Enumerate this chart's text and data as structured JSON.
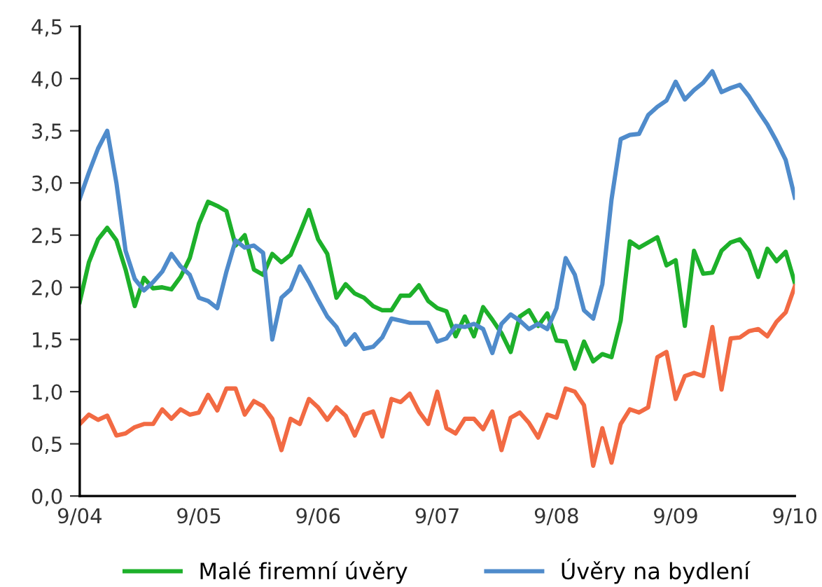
{
  "chart_data": {
    "type": "line",
    "categories": [
      "9/04",
      null,
      null,
      null,
      null,
      null,
      null,
      null,
      null,
      null,
      null,
      null,
      null,
      "9/05",
      null,
      null,
      null,
      null,
      null,
      null,
      null,
      null,
      null,
      null,
      null,
      null,
      "9/06",
      null,
      null,
      null,
      null,
      null,
      null,
      null,
      null,
      null,
      null,
      null,
      null,
      "9/07",
      null,
      null,
      null,
      null,
      null,
      null,
      null,
      null,
      null,
      null,
      null,
      null,
      "9/08",
      null,
      null,
      null,
      null,
      null,
      null,
      null,
      null,
      null,
      null,
      null,
      null,
      "9/09",
      null,
      null,
      null,
      null,
      null,
      null,
      null,
      null,
      null,
      null,
      null,
      null,
      "9/10"
    ],
    "series": [
      {
        "name": "Malé firemní úvěry",
        "color": "#1db02a",
        "values": [
          1.86,
          2.24,
          2.46,
          2.57,
          2.45,
          2.17,
          1.82,
          2.09,
          1.99,
          2.0,
          1.98,
          2.1,
          2.28,
          2.61,
          2.82,
          2.78,
          2.73,
          2.4,
          2.5,
          2.17,
          2.12,
          2.32,
          2.24,
          2.31,
          2.52,
          2.74,
          2.46,
          2.32,
          1.9,
          2.03,
          1.94,
          1.9,
          1.82,
          1.78,
          1.78,
          1.92,
          1.92,
          2.02,
          1.87,
          1.8,
          1.77,
          1.53,
          1.72,
          1.53,
          1.81,
          1.69,
          1.56,
          1.38,
          1.72,
          1.78,
          1.63,
          1.75,
          1.49,
          1.48,
          1.22,
          1.48,
          1.29,
          1.36,
          1.33,
          1.68,
          2.44,
          2.38,
          2.43,
          2.48,
          2.21,
          2.26,
          1.63,
          2.35,
          2.13,
          2.14,
          2.35,
          2.43,
          2.46,
          2.35,
          2.1,
          2.37,
          2.25,
          2.34,
          2.04
        ]
      },
      {
        "name": "Úvěry na bydlení",
        "color": "#4f8bcb",
        "values": [
          2.85,
          3.1,
          3.33,
          3.5,
          3.0,
          2.35,
          2.08,
          1.97,
          2.05,
          2.15,
          2.32,
          2.2,
          2.12,
          1.9,
          1.87,
          1.8,
          2.15,
          2.45,
          2.38,
          2.4,
          2.33,
          1.5,
          1.9,
          1.98,
          2.2,
          2.05,
          1.88,
          1.72,
          1.62,
          1.45,
          1.55,
          1.41,
          1.43,
          1.52,
          1.7,
          1.68,
          1.66,
          1.66,
          1.66,
          1.48,
          1.51,
          1.63,
          1.62,
          1.65,
          1.6,
          1.37,
          1.65,
          1.74,
          1.68,
          1.6,
          1.65,
          1.6,
          1.8,
          2.28,
          2.12,
          1.78,
          1.7,
          2.03,
          2.84,
          3.42,
          3.46,
          3.47,
          3.65,
          3.73,
          3.79,
          3.97,
          3.8,
          3.89,
          3.96,
          4.07,
          3.87,
          3.91,
          3.94,
          3.83,
          3.69,
          3.56,
          3.4,
          3.22,
          2.86
        ]
      },
      {
        "color": "#f26a43",
        "values": [
          0.69,
          0.78,
          0.73,
          0.77,
          0.58,
          0.6,
          0.66,
          0.69,
          0.69,
          0.83,
          0.74,
          0.83,
          0.78,
          0.8,
          0.97,
          0.82,
          1.03,
          1.03,
          0.78,
          0.91,
          0.86,
          0.74,
          0.44,
          0.74,
          0.69,
          0.93,
          0.85,
          0.73,
          0.85,
          0.77,
          0.58,
          0.78,
          0.81,
          0.57,
          0.93,
          0.9,
          0.98,
          0.81,
          0.69,
          1.0,
          0.65,
          0.6,
          0.74,
          0.74,
          0.64,
          0.81,
          0.44,
          0.75,
          0.8,
          0.7,
          0.56,
          0.78,
          0.75,
          1.03,
          1.0,
          0.87,
          0.29,
          0.65,
          0.32,
          0.69,
          0.83,
          0.8,
          0.85,
          1.33,
          1.38,
          0.93,
          1.15,
          1.18,
          1.15,
          1.62,
          1.02,
          1.51,
          1.52,
          1.58,
          1.6,
          1.53,
          1.67,
          1.76,
          2.01
        ]
      }
    ],
    "ylim": [
      0,
      4.5
    ],
    "yticks": [
      {
        "value": 0,
        "label": "0,0"
      },
      {
        "value": 0.5,
        "label": "0,5"
      },
      {
        "value": 1,
        "label": "1,0"
      },
      {
        "value": 1.5,
        "label": "1,5"
      },
      {
        "value": 2,
        "label": "2,0"
      },
      {
        "value": 2.5,
        "label": "2,5"
      },
      {
        "value": 3,
        "label": "3,0"
      },
      {
        "value": 3.5,
        "label": "3,5"
      },
      {
        "value": 4,
        "label": "4,0"
      },
      {
        "value": 4.5,
        "label": "4,5"
      }
    ],
    "grid": false,
    "legend": "bottom",
    "marker": "none",
    "line_style": "solid"
  }
}
